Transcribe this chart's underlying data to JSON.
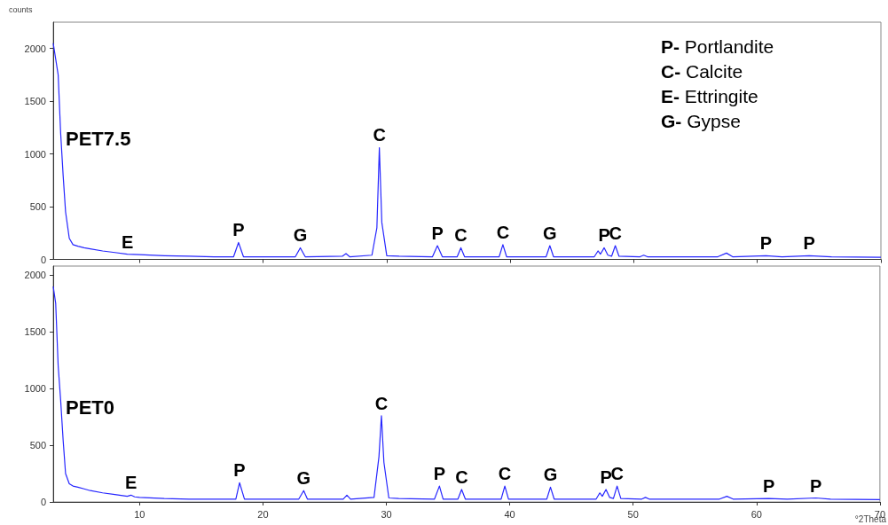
{
  "chart_data": [
    {
      "type": "line",
      "ylabel": "counts",
      "xlim": [
        3,
        70
      ],
      "xticks": [
        10,
        20,
        30,
        40,
        50,
        60,
        70
      ],
      "ylim": [
        0,
        2250
      ],
      "yticks": [
        0,
        500,
        1000,
        1500,
        2000
      ],
      "tick_labels": "y",
      "grid": false,
      "legend": false,
      "marker": "none",
      "line_style": "solid",
      "series": [
        {
          "name": "PET7.5",
          "color": "#2626ff",
          "x": [
            3,
            3.2,
            3.4,
            3.6,
            3.8,
            4,
            4.3,
            4.6,
            5,
            5.5,
            6,
            7,
            8,
            9,
            10,
            12,
            14,
            16,
            17.6,
            18,
            18.4,
            20,
            22.6,
            23,
            23.4,
            26.4,
            26.7,
            27,
            28.8,
            29.2,
            29.4,
            29.6,
            30,
            31,
            33.7,
            34.1,
            34.5,
            35.7,
            36,
            36.3,
            39.1,
            39.4,
            39.7,
            42.9,
            43.2,
            43.5,
            46.8,
            47.1,
            47.3,
            47.6,
            47.9,
            48.2,
            48.5,
            48.8,
            50.5,
            50.8,
            51.1,
            56.8,
            57.5,
            58,
            60.7,
            62,
            64.2,
            66,
            70
          ],
          "values": [
            2050,
            1900,
            1750,
            1200,
            800,
            450,
            200,
            140,
            125,
            110,
            100,
            80,
            65,
            50,
            45,
            35,
            30,
            25,
            25,
            160,
            25,
            25,
            25,
            110,
            25,
            30,
            55,
            25,
            40,
            300,
            1060,
            350,
            35,
            30,
            25,
            130,
            25,
            25,
            110,
            25,
            25,
            140,
            25,
            25,
            130,
            25,
            25,
            80,
            50,
            110,
            40,
            30,
            130,
            30,
            25,
            40,
            25,
            25,
            60,
            25,
            35,
            25,
            35,
            25,
            20
          ]
        }
      ],
      "annotations": [
        "P- Portlandite",
        "C- Calcite",
        "E- Ettringite",
        "G- Gypse",
        {
          "text": "E",
          "x": 9,
          "y": 50
        },
        {
          "text": "P",
          "x": 18,
          "y": 160
        },
        {
          "text": "G",
          "x": 23,
          "y": 110
        },
        {
          "text": "C",
          "x": 29.4,
          "y": 1060
        },
        {
          "text": "P",
          "x": 34.1,
          "y": 130
        },
        {
          "text": "C",
          "x": 36,
          "y": 110
        },
        {
          "text": "C",
          "x": 39.4,
          "y": 140
        },
        {
          "text": "G",
          "x": 43.2,
          "y": 130
        },
        {
          "text": "P",
          "x": 47.6,
          "y": 110
        },
        {
          "text": "C",
          "x": 48.5,
          "y": 130
        },
        {
          "text": "P",
          "x": 60.7,
          "y": 35
        },
        {
          "text": "P",
          "x": 64.2,
          "y": 35
        }
      ]
    },
    {
      "type": "line",
      "xlabel": "°2Theta",
      "xlim": [
        3,
        70
      ],
      "xticks": [
        10,
        20,
        30,
        40,
        50,
        60,
        70
      ],
      "ylim": [
        0,
        2080
      ],
      "yticks": [
        0,
        500,
        1000,
        1500,
        2000
      ],
      "grid": false,
      "legend": false,
      "marker": "none",
      "line_style": "solid",
      "series": [
        {
          "name": "PET0",
          "color": "#2626ff",
          "x": [
            3,
            3.2,
            3.4,
            3.6,
            3.8,
            4,
            4.3,
            4.6,
            5,
            5.5,
            6,
            7,
            8,
            9,
            9.3,
            9.6,
            10,
            12,
            14,
            16,
            17.8,
            18.1,
            18.5,
            20,
            22.9,
            23.3,
            23.6,
            26.5,
            26.8,
            27.1,
            29,
            29.4,
            29.6,
            29.8,
            30.2,
            31,
            33.9,
            34.3,
            34.6,
            35.8,
            36.1,
            36.4,
            39.3,
            39.6,
            39.9,
            43,
            43.3,
            43.6,
            47,
            47.3,
            47.5,
            47.8,
            48.1,
            48.4,
            48.7,
            49,
            50.7,
            51,
            51.3,
            57,
            57.6,
            58.1,
            61,
            62.5,
            64.8,
            66,
            70
          ],
          "values": [
            1900,
            1750,
            1200,
            900,
            550,
            250,
            160,
            140,
            130,
            115,
            100,
            80,
            65,
            50,
            60,
            45,
            40,
            30,
            25,
            25,
            25,
            170,
            25,
            25,
            25,
            100,
            25,
            25,
            60,
            25,
            40,
            400,
            760,
            350,
            35,
            30,
            25,
            140,
            25,
            25,
            110,
            25,
            25,
            140,
            25,
            25,
            130,
            25,
            25,
            80,
            50,
            110,
            40,
            30,
            140,
            30,
            25,
            40,
            25,
            25,
            50,
            25,
            30,
            25,
            35,
            25,
            20
          ]
        }
      ],
      "annotations": [
        {
          "text": "E",
          "x": 9.3,
          "y": 60
        },
        {
          "text": "P",
          "x": 18.1,
          "y": 170
        },
        {
          "text": "G",
          "x": 23.3,
          "y": 100
        },
        {
          "text": "C",
          "x": 29.6,
          "y": 760
        },
        {
          "text": "P",
          "x": 34.3,
          "y": 140
        },
        {
          "text": "C",
          "x": 36.1,
          "y": 110
        },
        {
          "text": "C",
          "x": 39.6,
          "y": 140
        },
        {
          "text": "G",
          "x": 43.3,
          "y": 130
        },
        {
          "text": "P",
          "x": 47.8,
          "y": 110
        },
        {
          "text": "C",
          "x": 48.7,
          "y": 140
        },
        {
          "text": "P",
          "x": 61,
          "y": 30
        },
        {
          "text": "P",
          "x": 64.8,
          "y": 35
        }
      ]
    }
  ]
}
